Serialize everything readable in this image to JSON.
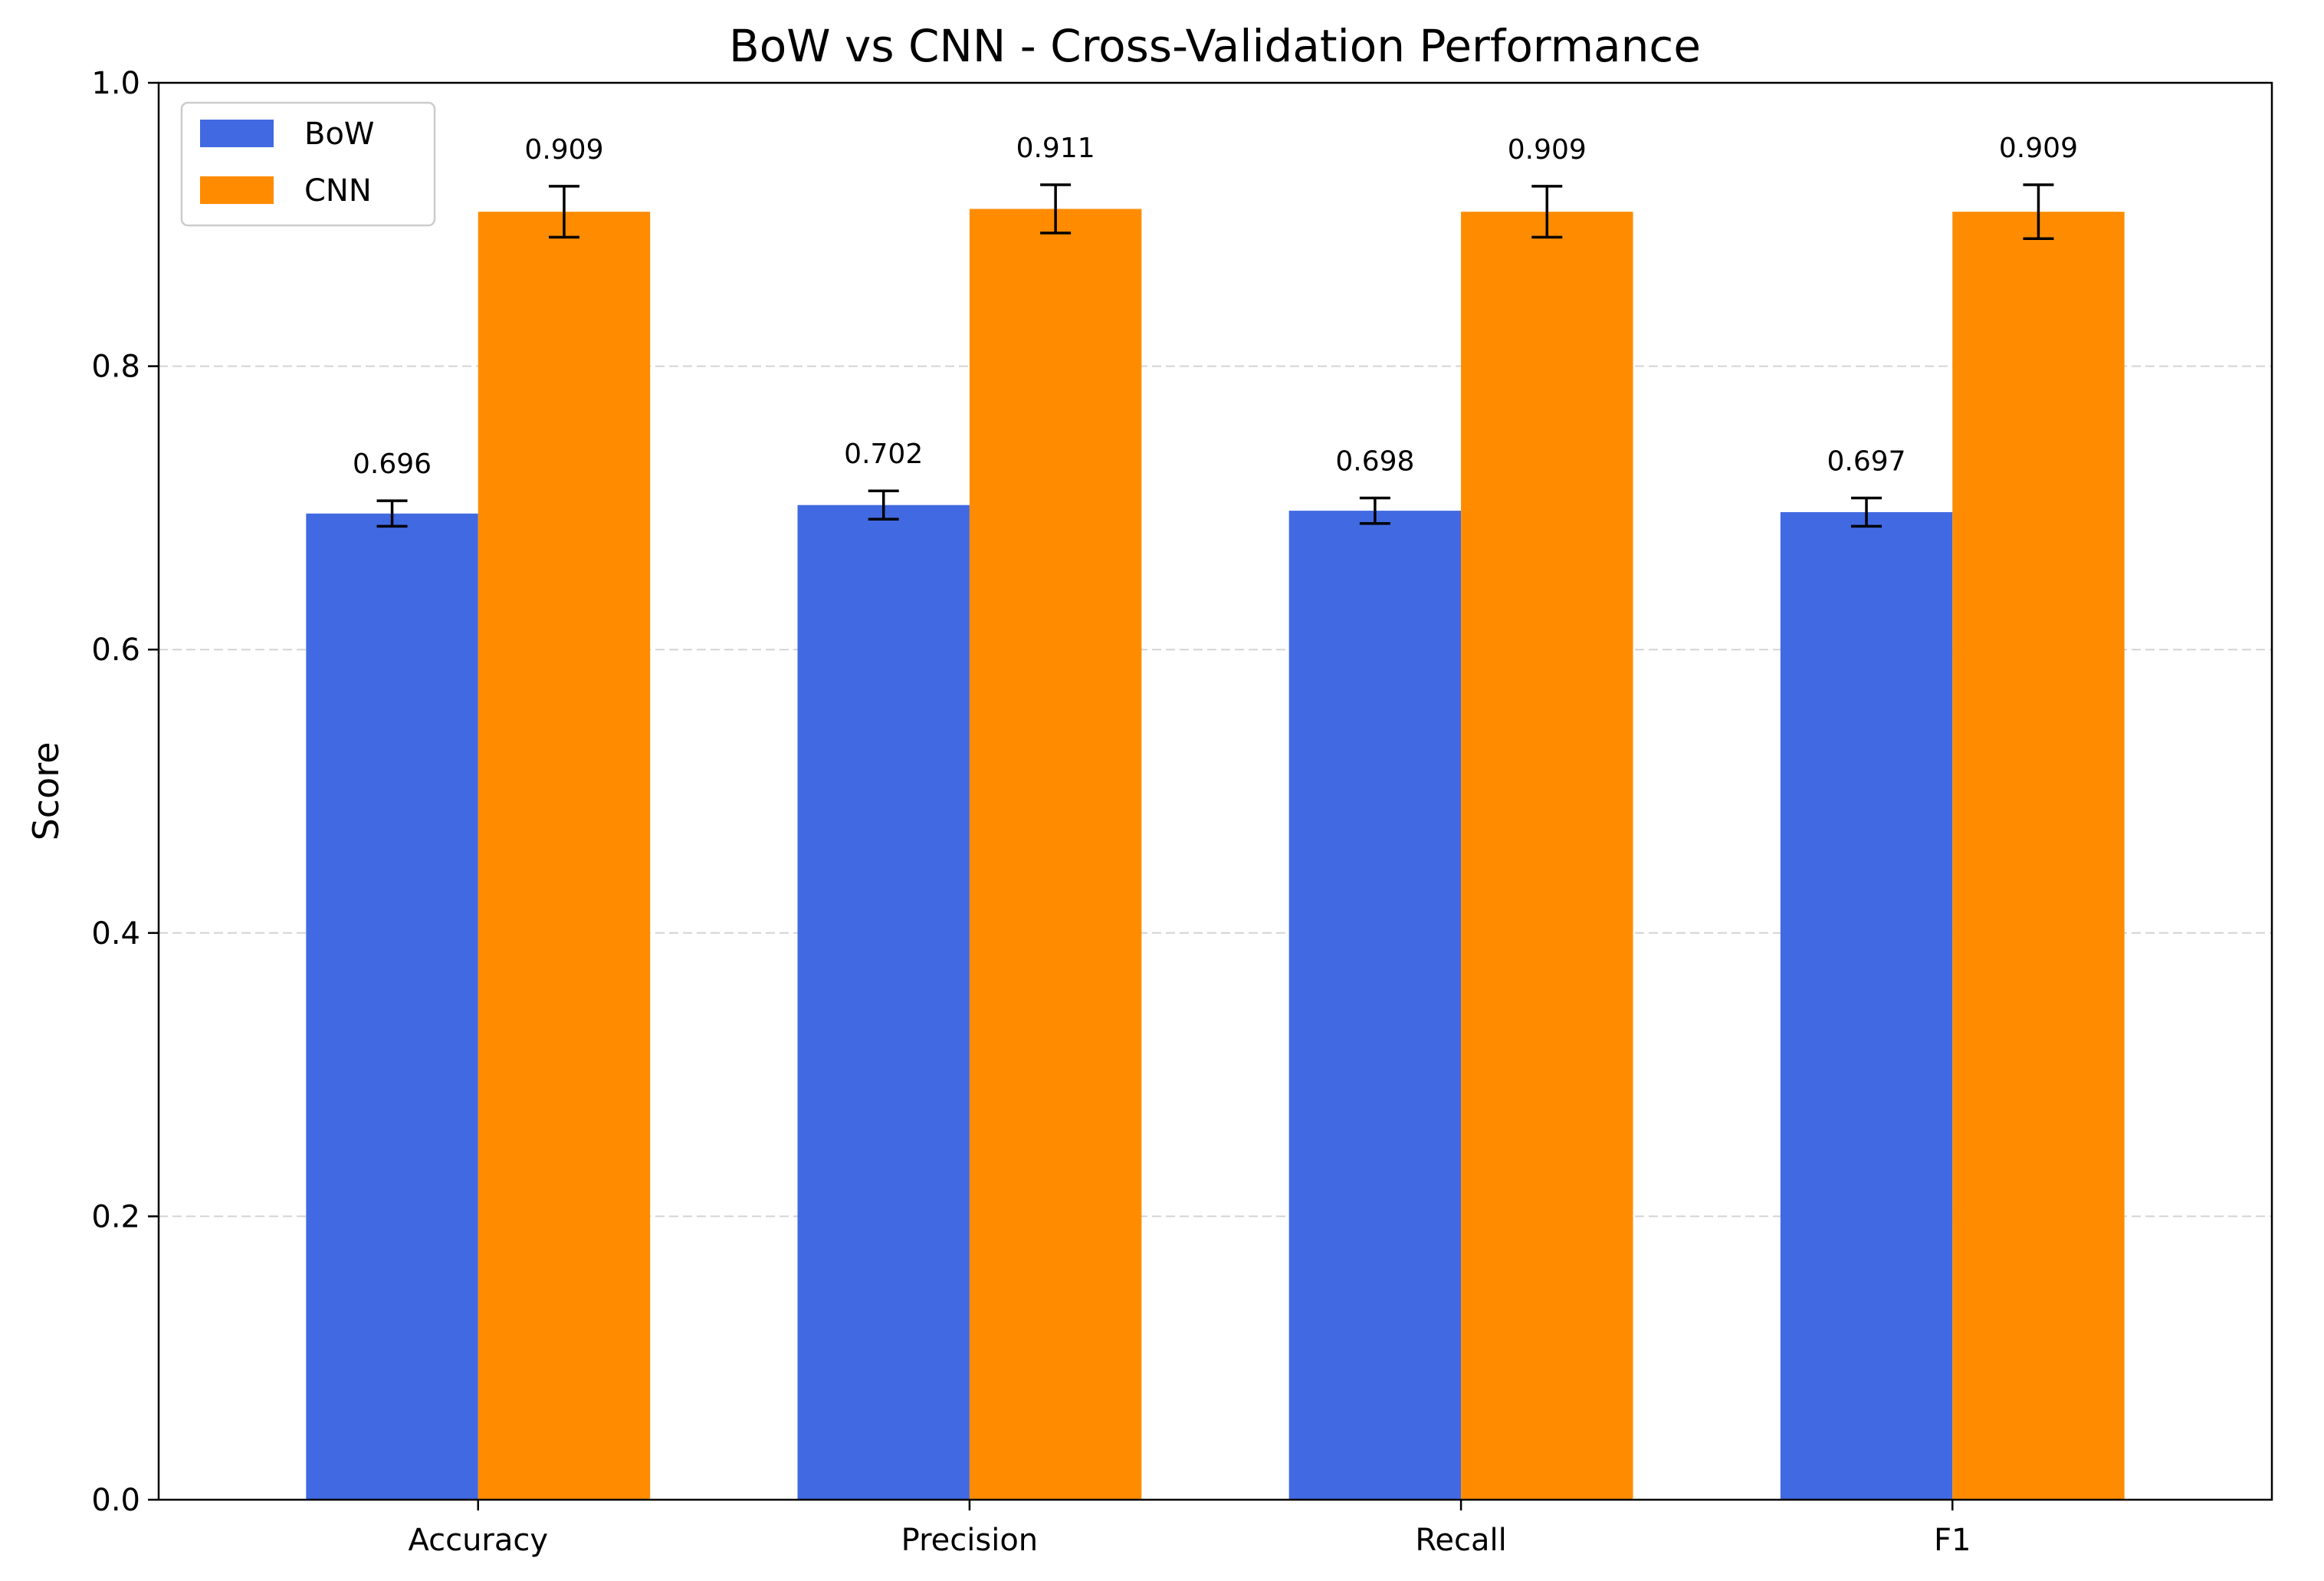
{
  "chart_data": {
    "type": "bar",
    "title": "BoW vs CNN - Cross-Validation Performance",
    "xlabel": "",
    "ylabel": "Score",
    "ylim": [
      0,
      1.0
    ],
    "yticks": [
      "0.0",
      "0.2",
      "0.4",
      "0.6",
      "0.8",
      "1.0"
    ],
    "grid": "y-axis dashed",
    "legend_position": "top-left",
    "categories": [
      "Accuracy",
      "Precision",
      "Recall",
      "F1"
    ],
    "series": [
      {
        "name": "BoW",
        "color": "#4169e1",
        "values": [
          0.696,
          0.702,
          0.698,
          0.697
        ],
        "errors": [
          0.009,
          0.01,
          0.009,
          0.01
        ],
        "labels": [
          "0.696",
          "0.702",
          "0.698",
          "0.697"
        ]
      },
      {
        "name": "CNN",
        "color": "#ff8c00",
        "values": [
          0.909,
          0.911,
          0.909,
          0.909
        ],
        "errors": [
          0.018,
          0.017,
          0.018,
          0.019
        ],
        "labels": [
          "0.909",
          "0.911",
          "0.909",
          "0.909"
        ]
      }
    ]
  }
}
